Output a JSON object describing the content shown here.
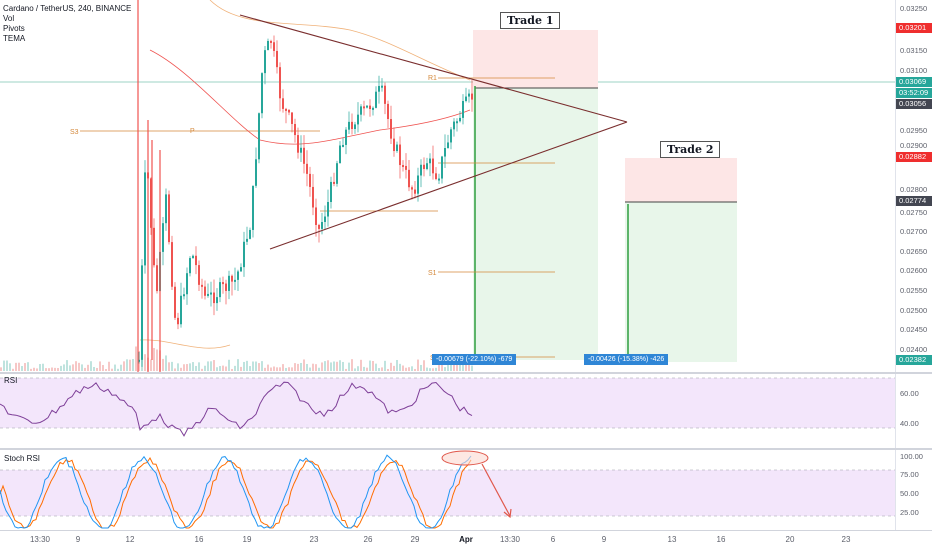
{
  "header": {
    "symbol_title": "Cardano / TetherUS, 240, BINANCE",
    "indicators": [
      "Vol",
      "Pivots",
      "TEMA"
    ]
  },
  "price_axis": {
    "ticks": [
      "0.03250",
      "0.03201",
      "0.03150",
      "0.03100",
      "0.03069",
      "03:52:09",
      "0.03056",
      "0.02950",
      "0.02900",
      "0.02882",
      "0.02800",
      "0.02774",
      "0.02750",
      "0.02700",
      "0.02650",
      "0.02600",
      "0.02550",
      "0.02500",
      "0.02450",
      "0.02400",
      "0.02382"
    ]
  },
  "price_tags": {
    "stop_trade1": "0.03201",
    "last_price": "0.03069",
    "countdown": "03:52:09",
    "pivot_level": "0.03056",
    "stop_trade2": "0.02882",
    "entry_trade2": "0.02774",
    "target": "0.02382"
  },
  "pivot_labels": {
    "s3": "S3",
    "p": "P",
    "r1": "R1",
    "s1": "S1",
    "s": "S"
  },
  "trades": {
    "trade1_label": "Trade 1",
    "trade2_label": "Trade 2",
    "trade1_chip": "-0.00679 (-22.10%) -679",
    "trade2_chip": "-0.00426 (-15.38%) -426"
  },
  "rsi": {
    "label": "RSI",
    "ticks": [
      "60.00",
      "40.00"
    ]
  },
  "stoch_rsi": {
    "label": "Stoch RSI",
    "ticks": [
      "100.00",
      "75.00",
      "50.00",
      "25.00"
    ]
  },
  "time_axis": {
    "labels": [
      "13:30",
      "9",
      "12",
      "16",
      "19",
      "23",
      "26",
      "29",
      "Apr",
      "13:30",
      "6",
      "9",
      "13",
      "16",
      "20",
      "23"
    ]
  },
  "colors": {
    "up": "#26a69a",
    "down": "#ef5350",
    "pivot": "#d4883a",
    "triangle": "#7a2e2e",
    "profit_zone": "#e8f6ea",
    "stop_zone": "#fde6e6",
    "trade_line": "#2e9e3e",
    "rsi_band": "#f3e6fb",
    "rsi_line": "#7e3f98",
    "k_line": "#2196f3",
    "d_line": "#ff6d00",
    "chip": "#2f86d6"
  }
}
